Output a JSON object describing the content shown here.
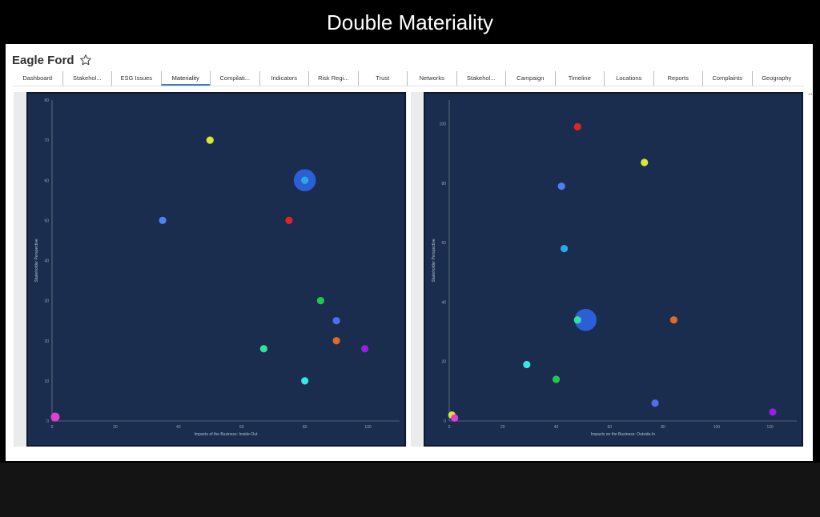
{
  "slide": {
    "title": "Double Materiality"
  },
  "app": {
    "title": "Eagle Ford",
    "star_icon": "star-outline-icon"
  },
  "tabs": [
    {
      "label": "Dashboard"
    },
    {
      "label": "Stakehol..."
    },
    {
      "label": "ESG Issues"
    },
    {
      "label": "Materiality",
      "active": true
    },
    {
      "label": "Compilati..."
    },
    {
      "label": "Indicators"
    },
    {
      "label": "Risk Regi..."
    },
    {
      "label": "Trust"
    },
    {
      "label": "Networks"
    },
    {
      "label": "Stakehol..."
    },
    {
      "label": "Campaign"
    },
    {
      "label": "Timeline"
    },
    {
      "label": "Locations"
    },
    {
      "label": "Reports"
    },
    {
      "label": "Complaints"
    },
    {
      "label": "Geography"
    }
  ],
  "chart_data": [
    {
      "type": "scatter",
      "xlabel": "Impacts of the Business: Inside-Out",
      "ylabel": "Stakeholder Perspective",
      "xlim": [
        0,
        110
      ],
      "ylim": [
        0,
        80
      ],
      "xticks": [
        0,
        20,
        40,
        60,
        80,
        100
      ],
      "yticks": [
        0,
        10,
        20,
        30,
        40,
        50,
        60,
        70,
        80
      ],
      "grid": false,
      "background": "#1a2d4e",
      "points": [
        {
          "x": 50,
          "y": 70,
          "color": "#d8e63a",
          "size": 1
        },
        {
          "x": 80,
          "y": 60,
          "color": "#2a5fd6",
          "size": 3
        },
        {
          "x": 80,
          "y": 60,
          "color": "#2aa8e8",
          "size": 1
        },
        {
          "x": 35,
          "y": 50,
          "color": "#4f7ff0",
          "size": 1
        },
        {
          "x": 75,
          "y": 50,
          "color": "#e02424",
          "size": 1
        },
        {
          "x": 85,
          "y": 30,
          "color": "#22c84a",
          "size": 1
        },
        {
          "x": 90,
          "y": 25,
          "color": "#4f6ef0",
          "size": 1
        },
        {
          "x": 90,
          "y": 20,
          "color": "#e06a2a",
          "size": 1
        },
        {
          "x": 67,
          "y": 18,
          "color": "#33e0a0",
          "size": 1
        },
        {
          "x": 99,
          "y": 18,
          "color": "#9a1ee0",
          "size": 1
        },
        {
          "x": 80,
          "y": 10,
          "color": "#36e6e0",
          "size": 1
        },
        {
          "x": 1,
          "y": 1,
          "color": "#e040d0",
          "size": 1.2
        }
      ]
    },
    {
      "type": "scatter",
      "xlabel": "Impacts on the Business: Outside-In",
      "ylabel": "Stakeholder Perspective",
      "xlim": [
        0,
        130
      ],
      "ylim": [
        0,
        108
      ],
      "xticks": [
        0,
        20,
        40,
        60,
        80,
        100,
        120
      ],
      "yticks": [
        0,
        20,
        40,
        60,
        80,
        100
      ],
      "grid": false,
      "background": "#1a2d4e",
      "points": [
        {
          "x": 48,
          "y": 99,
          "color": "#e02424",
          "size": 1
        },
        {
          "x": 73,
          "y": 87,
          "color": "#d8e63a",
          "size": 1
        },
        {
          "x": 42,
          "y": 79,
          "color": "#4f7ff0",
          "size": 1
        },
        {
          "x": 43,
          "y": 58,
          "color": "#2aa8e8",
          "size": 1
        },
        {
          "x": 51,
          "y": 34,
          "color": "#2a5fd6",
          "size": 3
        },
        {
          "x": 48,
          "y": 34,
          "color": "#33e0a0",
          "size": 1
        },
        {
          "x": 84,
          "y": 34,
          "color": "#e06a2a",
          "size": 1
        },
        {
          "x": 29,
          "y": 19,
          "color": "#36e6e0",
          "size": 1
        },
        {
          "x": 40,
          "y": 14,
          "color": "#22c84a",
          "size": 1
        },
        {
          "x": 77,
          "y": 6,
          "color": "#4f6ef0",
          "size": 1
        },
        {
          "x": 121,
          "y": 3,
          "color": "#9a1ee0",
          "size": 1
        },
        {
          "x": 1,
          "y": 2,
          "color": "#d8e63a",
          "size": 1
        },
        {
          "x": 2,
          "y": 1,
          "color": "#e040d0",
          "size": 1
        }
      ]
    }
  ]
}
